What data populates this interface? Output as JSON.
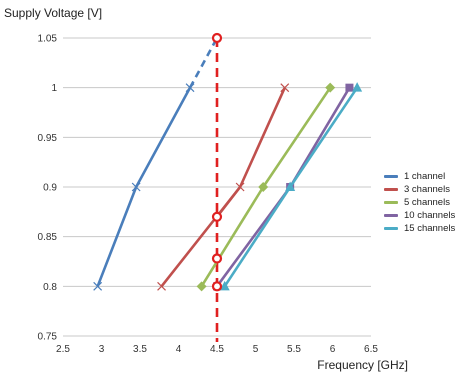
{
  "chart_data": {
    "type": "line",
    "ylabel": "Supply Voltage [V]",
    "xlabel": "Frequency [GHz]",
    "xlim": [
      2.5,
      6.5
    ],
    "ylim": [
      0.75,
      1.05
    ],
    "xticks": [
      "2.5",
      "3",
      "3.5",
      "4",
      "4.5",
      "5",
      "5.5",
      "6",
      "6.5"
    ],
    "yticks": [
      "0.75",
      "0.8",
      "0.85",
      "0.9",
      "0.95",
      "1",
      "1.05"
    ],
    "grid": "horizontal",
    "legend_position": "right",
    "series": [
      {
        "name": "1 channel",
        "color": "#4a7ebb",
        "marker": "x",
        "points": [
          [
            2.95,
            0.8
          ],
          [
            3.45,
            0.9
          ],
          [
            4.15,
            1.0
          ]
        ]
      },
      {
        "name": "3 channels",
        "color": "#c0504d",
        "marker": "x",
        "points": [
          [
            3.78,
            0.8
          ],
          [
            4.8,
            0.9
          ],
          [
            5.38,
            1.0
          ]
        ]
      },
      {
        "name": "5 channels",
        "color": "#9bbb59",
        "marker": "diamond",
        "points": [
          [
            4.3,
            0.8
          ],
          [
            5.1,
            0.9
          ],
          [
            5.97,
            1.0
          ]
        ]
      },
      {
        "name": "10 channels",
        "color": "#8064a2",
        "marker": "square",
        "points": [
          [
            4.5,
            0.8
          ],
          [
            5.45,
            0.9
          ],
          [
            6.22,
            1.0
          ]
        ]
      },
      {
        "name": "15 channels",
        "color": "#4bacc6",
        "marker": "triangle",
        "points": [
          [
            4.6,
            0.8
          ],
          [
            5.45,
            0.9
          ],
          [
            6.32,
            1.0
          ]
        ]
      }
    ],
    "annotations": {
      "dashed_extension": {
        "color": "#4a7ebb",
        "from": [
          4.15,
          1.0
        ],
        "to": [
          4.5,
          1.05
        ]
      },
      "vertical_limit": {
        "color": "#e02020",
        "x": 4.5,
        "from_y": 0.75,
        "to_y": 1.05
      },
      "circles": [
        [
          4.5,
          1.05
        ],
        [
          4.5,
          0.87
        ],
        [
          4.5,
          0.828
        ],
        [
          4.5,
          0.8
        ]
      ],
      "connector": {
        "color": "#c0504d",
        "from": [
          4.5,
          0.87
        ],
        "to": [
          4.8,
          0.9
        ]
      }
    }
  }
}
